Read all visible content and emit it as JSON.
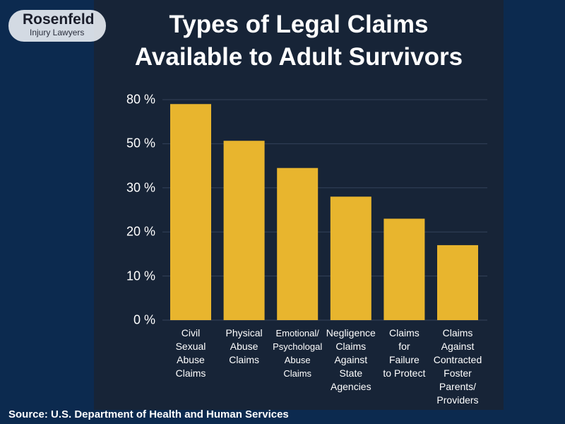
{
  "logo": {
    "name": "Rosenfeld",
    "tagline": "Injury Lawyers"
  },
  "source": "Source: U.S. Department of Health and Human Services",
  "chart_data": {
    "type": "bar",
    "title": "Types of Legal Claims\nAvailable to Adult Survivors",
    "categories": [
      "Civil\nSexual\nAbuse\nClaims",
      "Physical\nAbuse\nClaims",
      "Emotional/\nPsychologal\nAbuse\nClaims",
      "Negligence\nClaims\nAgainst\nState\nAgencies",
      "Claims\nfor\nFailure\nto Protect",
      "Claims\nAgainst\nContracted\nFoster\nParents/\nProviders"
    ],
    "values": [
      77,
      52,
      39,
      28,
      23,
      17
    ],
    "color": "#e8b52e",
    "ylim": [
      0,
      80
    ],
    "yticks": [
      {
        "value": 0,
        "label": "0 %"
      },
      {
        "value": 10,
        "label": "10 %"
      },
      {
        "value": 20,
        "label": "20 %"
      },
      {
        "value": 30,
        "label": "30 %"
      },
      {
        "value": 50,
        "label": "50 %"
      },
      {
        "value": 80,
        "label": "80 %"
      }
    ],
    "grid": true
  }
}
